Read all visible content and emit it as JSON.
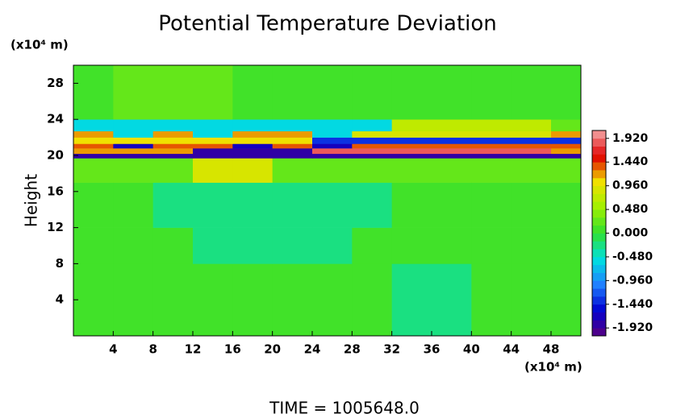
{
  "chart_data": {
    "type": "heatmap",
    "title": "Potential Temperature Deviation",
    "ylabel": "Height",
    "y_unit": "(x10⁴ m)",
    "x_unit": "(x10⁴ m)",
    "footer": "TIME  =  1005648.0",
    "xlim": [
      0,
      51
    ],
    "ylim": [
      0,
      30
    ],
    "xticks": [
      4,
      8,
      12,
      16,
      20,
      24,
      28,
      32,
      36,
      40,
      44,
      48
    ],
    "yticks": [
      4,
      8,
      12,
      16,
      20,
      24,
      28
    ],
    "x_edges": [
      0,
      4,
      8,
      12,
      16,
      20,
      24,
      28,
      32,
      36,
      40,
      44,
      48,
      51
    ],
    "y_edges": [
      0,
      8,
      12,
      17,
      19.7,
      20.2,
      20.8,
      21.3,
      22,
      22.7,
      24,
      30
    ],
    "z": [
      [
        0.1,
        0.1,
        0.1,
        0.1,
        0.1,
        0.1,
        0.1,
        0.1,
        -0.2,
        -0.2,
        0.1,
        0.1,
        0.1
      ],
      [
        0.1,
        0.1,
        0.1,
        -0.3,
        -0.3,
        -0.3,
        -0.3,
        0.1,
        0.1,
        0.1,
        0.1,
        0.1,
        0.1
      ],
      [
        0.1,
        0.1,
        -0.3,
        -0.3,
        -0.3,
        -0.3,
        -0.3,
        -0.3,
        0.1,
        0.1,
        0.1,
        0.1,
        0.1
      ],
      [
        0.3,
        0.3,
        0.3,
        0.8,
        0.8,
        0.3,
        0.3,
        0.3,
        0.3,
        0.3,
        0.3,
        0.3,
        0.3
      ],
      [
        -1.9,
        -1.9,
        -1.9,
        -1.9,
        -1.9,
        -1.9,
        -1.9,
        -1.9,
        -1.9,
        -1.9,
        -1.9,
        -1.9,
        -1.9
      ],
      [
        1.2,
        1.2,
        1.2,
        -1.8,
        -1.8,
        -1.8,
        1.9,
        1.9,
        1.9,
        1.9,
        1.9,
        1.9,
        1.2
      ],
      [
        1.4,
        -1.7,
        1.4,
        1.4,
        -1.7,
        1.4,
        -1.7,
        1.4,
        1.4,
        1.4,
        1.4,
        1.4,
        1.4
      ],
      [
        1.0,
        1.0,
        1.0,
        1.0,
        1.0,
        1.0,
        -1.4,
        -1.4,
        -1.4,
        -1.4,
        -1.4,
        -1.4,
        -1.4
      ],
      [
        1.2,
        -0.6,
        1.2,
        -0.6,
        1.2,
        1.2,
        -0.6,
        0.8,
        0.8,
        0.8,
        0.8,
        0.8,
        1.2
      ],
      [
        -0.5,
        -0.5,
        -0.5,
        -0.5,
        -0.5,
        -0.5,
        -0.5,
        -0.5,
        0.7,
        0.7,
        0.7,
        0.7,
        0.3
      ],
      [
        0.15,
        0.3,
        0.3,
        0.3,
        0.15,
        0.15,
        0.15,
        0.15,
        0.15,
        0.15,
        0.15,
        0.15,
        0.15
      ]
    ],
    "clim": [
      -2.08,
      2.08
    ],
    "colormap": [
      "#5a0080",
      "#0000d0",
      "#2080ff",
      "#00e0e0",
      "#30e030",
      "#a0f000",
      "#f0e000",
      "#e00000",
      "#f4a8a8"
    ],
    "cticks": [
      {
        "value": 1.92,
        "label": "1.920"
      },
      {
        "value": 1.44,
        "label": "1.440"
      },
      {
        "value": 0.96,
        "label": "0.960"
      },
      {
        "value": 0.48,
        "label": "0.480"
      },
      {
        "value": 0,
        "label": "0.000"
      },
      {
        "value": -0.48,
        "label": "-0.480"
      },
      {
        "value": -0.96,
        "label": "-0.960"
      },
      {
        "value": -1.44,
        "label": "-1.440"
      },
      {
        "value": -1.92,
        "label": "-1.920"
      }
    ]
  }
}
